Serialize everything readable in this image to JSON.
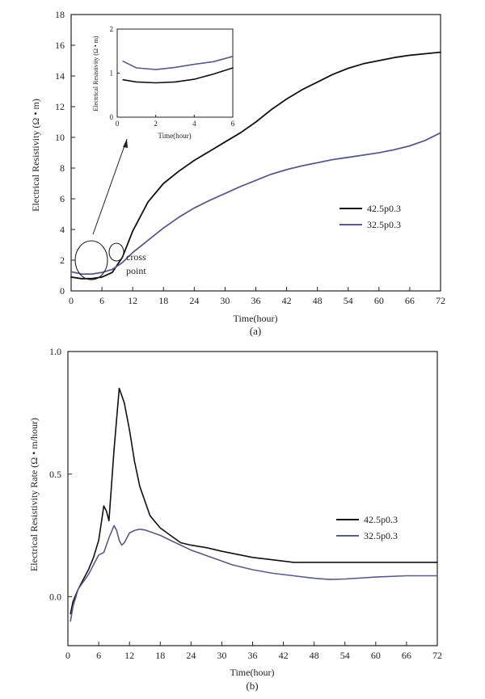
{
  "chart_data": [
    {
      "panel_label": "(a)",
      "type": "line",
      "xlabel": "Time(hour)",
      "ylabel": "Electrical Resistivity (Ω • m)",
      "xlim": [
        0,
        72
      ],
      "ylim": [
        0,
        18
      ],
      "xticks": [
        "0",
        "6",
        "12",
        "18",
        "24",
        "30",
        "36",
        "42",
        "48",
        "54",
        "60",
        "66",
        "72"
      ],
      "yticks": [
        "0",
        "2",
        "4",
        "6",
        "8",
        "10",
        "12",
        "14",
        "16",
        "18"
      ],
      "legend_position": "right",
      "annotations": {
        "cross_point_line1": "cross",
        "cross_point_line2": "point"
      },
      "series": [
        {
          "name": "42.5p0.3",
          "color": "#111111",
          "x": [
            0,
            2,
            4,
            6,
            8,
            10,
            12,
            15,
            18,
            21,
            24,
            27,
            30,
            33,
            36,
            39,
            42,
            45,
            48,
            51,
            54,
            57,
            60,
            63,
            66,
            69,
            72
          ],
          "y": [
            0.9,
            0.8,
            0.8,
            0.9,
            1.2,
            2.2,
            3.9,
            5.8,
            7.0,
            7.8,
            8.5,
            9.1,
            9.7,
            10.3,
            11.0,
            11.8,
            12.5,
            13.1,
            13.6,
            14.1,
            14.5,
            14.8,
            15.0,
            15.2,
            15.35,
            15.45,
            15.55
          ]
        },
        {
          "name": "32.5p0.3",
          "color": "#5a5a88",
          "x": [
            0,
            2,
            4,
            6,
            8,
            10,
            12,
            15,
            18,
            21,
            24,
            27,
            30,
            33,
            36,
            39,
            42,
            45,
            48,
            51,
            54,
            57,
            60,
            63,
            66,
            69,
            72
          ],
          "y": [
            1.25,
            1.1,
            1.1,
            1.2,
            1.4,
            1.85,
            2.5,
            3.3,
            4.1,
            4.8,
            5.4,
            5.9,
            6.35,
            6.8,
            7.2,
            7.6,
            7.9,
            8.15,
            8.35,
            8.55,
            8.7,
            8.85,
            9.0,
            9.2,
            9.45,
            9.8,
            10.3
          ]
        }
      ],
      "inset": {
        "xlabel": "Time(hour)",
        "ylabel": "Electrical Resistivity (Ω • m)",
        "xlim": [
          0,
          6
        ],
        "ylim": [
          0,
          2
        ],
        "xticks": [
          "0",
          "2",
          "4",
          "6"
        ],
        "yticks": [
          "0",
          "1",
          "2"
        ],
        "series": [
          {
            "name": "42.5p0.3",
            "color": "#111111",
            "x": [
              0.3,
              1,
              2,
              3,
              4,
              5,
              6
            ],
            "y": [
              0.85,
              0.8,
              0.78,
              0.8,
              0.86,
              0.98,
              1.12
            ]
          },
          {
            "name": "32.5p0.3",
            "color": "#5a5a88",
            "x": [
              0.3,
              1,
              2,
              3,
              4,
              5,
              6
            ],
            "y": [
              1.27,
              1.12,
              1.08,
              1.13,
              1.2,
              1.26,
              1.38
            ]
          }
        ]
      }
    },
    {
      "panel_label": "(b)",
      "type": "line",
      "xlabel": "Time(hour)",
      "ylabel": "Electrical Resistivity Rate (Ω • m/hour)",
      "xlim": [
        0,
        72
      ],
      "ylim": [
        -0.2,
        1.0
      ],
      "xticks": [
        "0",
        "6",
        "12",
        "18",
        "24",
        "30",
        "36",
        "42",
        "48",
        "54",
        "60",
        "66",
        "72"
      ],
      "yticks": [
        "0.0",
        "0.5",
        "1.0"
      ],
      "legend_position": "right",
      "series": [
        {
          "name": "42.5p0.3",
          "color": "#111111",
          "x": [
            0.5,
            1,
            2,
            3,
            4,
            5,
            6,
            6.5,
            7,
            7.5,
            8,
            9,
            10,
            11,
            12,
            13,
            14,
            16,
            18,
            20,
            22,
            24,
            27,
            30,
            36,
            40,
            44,
            48,
            54,
            60,
            66,
            72
          ],
          "y": [
            -0.07,
            -0.02,
            0.03,
            0.07,
            0.11,
            0.16,
            0.23,
            0.3,
            0.37,
            0.35,
            0.31,
            0.6,
            0.85,
            0.79,
            0.68,
            0.55,
            0.45,
            0.33,
            0.28,
            0.25,
            0.22,
            0.21,
            0.2,
            0.185,
            0.16,
            0.15,
            0.14,
            0.14,
            0.14,
            0.14,
            0.14,
            0.14
          ]
        },
        {
          "name": "32.5p0.3",
          "color": "#5a5a88",
          "x": [
            0.5,
            1,
            2,
            3,
            4,
            5,
            6,
            7,
            8,
            9,
            9.5,
            10,
            10.5,
            11,
            12,
            13,
            14,
            15,
            16,
            18,
            20,
            24,
            28,
            32,
            36,
            40,
            44,
            48,
            51,
            54,
            60,
            66,
            72
          ],
          "y": [
            -0.1,
            -0.04,
            0.03,
            0.06,
            0.09,
            0.13,
            0.17,
            0.18,
            0.24,
            0.29,
            0.27,
            0.23,
            0.21,
            0.22,
            0.26,
            0.27,
            0.275,
            0.272,
            0.265,
            0.25,
            0.23,
            0.19,
            0.16,
            0.13,
            0.11,
            0.095,
            0.085,
            0.075,
            0.07,
            0.072,
            0.08,
            0.085,
            0.085
          ]
        }
      ]
    }
  ]
}
